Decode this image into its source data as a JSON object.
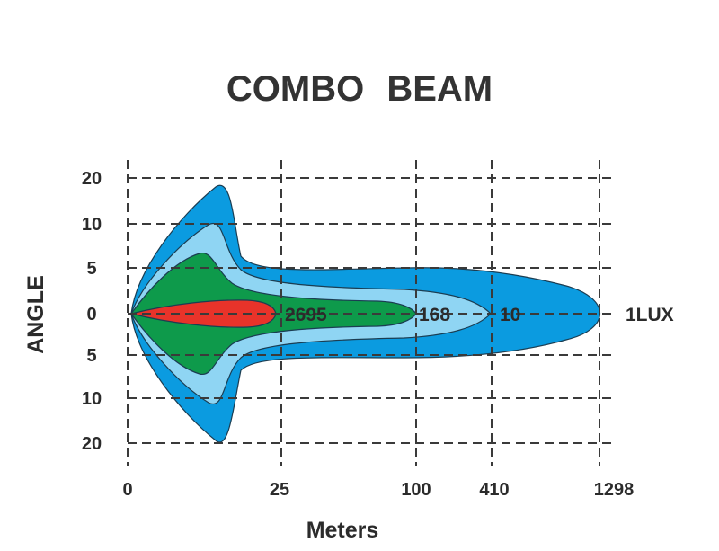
{
  "colors": {
    "outer": "#0b9be0",
    "light": "#8fd5f3",
    "green": "#0e9a4b",
    "red": "#e8332a",
    "outline": "#1b3d52",
    "text": "#2b2b2b"
  },
  "chart_data": {
    "type": "other",
    "title": "COMBO  BEAM",
    "xlabel": "Meters",
    "ylabel": "ANGLE",
    "x_ticks": [
      "0",
      "25",
      "100",
      "410",
      "1298"
    ],
    "y_ticks_upper": [
      "20",
      "10",
      "5"
    ],
    "y_tick_center": "0",
    "y_ticks_lower": [
      "5",
      "10",
      "20"
    ],
    "grid": true,
    "zones": [
      {
        "label": "2695",
        "reach": "25",
        "color": "red"
      },
      {
        "label": "168",
        "reach": "100",
        "color": "green"
      },
      {
        "label": "10",
        "reach": "410",
        "color": "light"
      },
      {
        "label": "1LUX",
        "reach": "1298",
        "color": "outer"
      }
    ]
  }
}
